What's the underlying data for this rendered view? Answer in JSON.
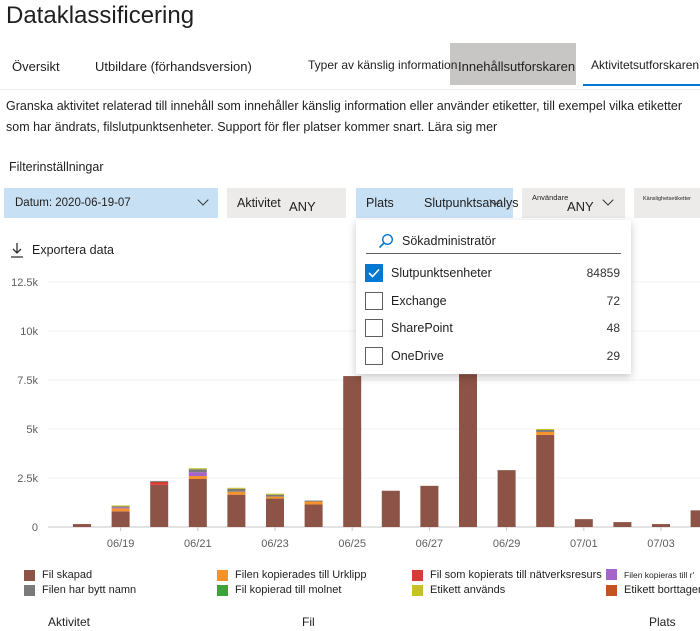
{
  "page": {
    "title": "Dataklassificering"
  },
  "tabs": [
    {
      "label": "Översikt"
    },
    {
      "label": "Utbildare (förhandsversion)"
    },
    {
      "label": "Typer av känslig information"
    },
    {
      "label": "Innehållsutforskaren"
    },
    {
      "label": "Aktivitetsutforskaren"
    }
  ],
  "description": "Granska aktivitet relaterad till innehåll som innehåller känslig information eller använder etiketter, till exempel vilka etiketter som har ändrats, filslutpunktsenheter. Support för fler platser kommer snart. Lära sig mer",
  "filters": {
    "label": "Filterinställningar",
    "date": "Datum: 2020-06-19-07",
    "activity_label": "Aktivitet",
    "activity_value": "ANY",
    "location_label": "Plats",
    "location_value": "Slutpunktsanalys",
    "user_label": "Användare",
    "user_value": "ANY",
    "sensitivity_label": "Känslighetsetiketter"
  },
  "export_label": "Exportera data",
  "dropdown": {
    "search_placeholder": "Sökadministratör",
    "options": [
      {
        "label": "Slutpunktsenheter",
        "count": "84859",
        "checked": true
      },
      {
        "label": "Exchange",
        "count": "72",
        "checked": false
      },
      {
        "label": "SharePoint",
        "count": "48",
        "checked": false
      },
      {
        "label": "OneDrive",
        "count": "29",
        "checked": false
      }
    ]
  },
  "colors": {
    "created": "#8c5346",
    "copied_clipboard": "#f7922a",
    "copied_network": "#d83b36",
    "copied_usb": "#a565c8",
    "renamed": "#7a7a7a",
    "copied_cloud": "#3ba338",
    "label_applied": "#c6c225",
    "label_removed": "#c4541f",
    "accent": "#0078d4"
  },
  "chart_data": {
    "type": "bar",
    "stacked": true,
    "y_ticks": [
      "0",
      "2.5k",
      "5k",
      "7.5k",
      "10k",
      "12.5k"
    ],
    "ylim": [
      0,
      12500
    ],
    "x_ticks": [
      "06/19",
      "06/21",
      "06/23",
      "06/25",
      "06/27",
      "06/29",
      "07/01",
      "07/03"
    ],
    "categories": [
      "06/18",
      "06/19",
      "06/20",
      "06/21",
      "06/22",
      "06/23",
      "06/24",
      "06/25",
      "06/26",
      "06/27",
      "06/28",
      "06/29",
      "06/30",
      "07/01",
      "07/02",
      "07/03",
      "07/04"
    ],
    "series": [
      {
        "name": "Fil skapad",
        "color_key": "created",
        "values": [
          150,
          800,
          2150,
          2450,
          1650,
          1450,
          1150,
          7700,
          1850,
          2100,
          7800,
          2900,
          4700,
          400,
          250,
          150,
          850
        ]
      },
      {
        "name": "Filen kopierades till Urklipp",
        "color_key": "copied_clipboard",
        "values": [
          0,
          150,
          0,
          150,
          150,
          100,
          150,
          0,
          0,
          0,
          0,
          0,
          150,
          0,
          0,
          0,
          0
        ]
      },
      {
        "name": "Fil som kopierats till nätverksresurs",
        "color_key": "copied_network",
        "values": [
          0,
          0,
          150,
          0,
          0,
          0,
          0,
          0,
          0,
          0,
          0,
          0,
          0,
          0,
          0,
          0,
          0
        ]
      },
      {
        "name": "Filen kopieras till r'",
        "color_key": "copied_usb",
        "values": [
          0,
          50,
          0,
          200,
          0,
          0,
          0,
          0,
          0,
          0,
          0,
          0,
          0,
          0,
          0,
          0,
          0
        ]
      },
      {
        "name": "Filen har bytt namn",
        "color_key": "renamed",
        "values": [
          0,
          50,
          50,
          150,
          150,
          100,
          50,
          0,
          0,
          0,
          0,
          0,
          100,
          0,
          0,
          0,
          0
        ]
      },
      {
        "name": "Fil kopierad till molnet",
        "color_key": "copied_cloud",
        "values": [
          0,
          0,
          0,
          0,
          0,
          0,
          0,
          0,
          0,
          0,
          0,
          0,
          0,
          0,
          0,
          0,
          0
        ]
      },
      {
        "name": "Etikett används",
        "color_key": "label_applied",
        "values": [
          0,
          50,
          0,
          50,
          50,
          50,
          0,
          0,
          0,
          0,
          0,
          0,
          50,
          0,
          0,
          0,
          0
        ]
      },
      {
        "name": "Etikett borttagen",
        "color_key": "label_removed",
        "values": [
          0,
          0,
          0,
          0,
          0,
          0,
          0,
          0,
          0,
          0,
          0,
          0,
          0,
          0,
          0,
          0,
          0
        ]
      }
    ],
    "legend_placement": "bottom",
    "grid": true
  },
  "footer": {
    "col1": "Aktivitet",
    "col2": "Fil",
    "col3": "Plats"
  }
}
